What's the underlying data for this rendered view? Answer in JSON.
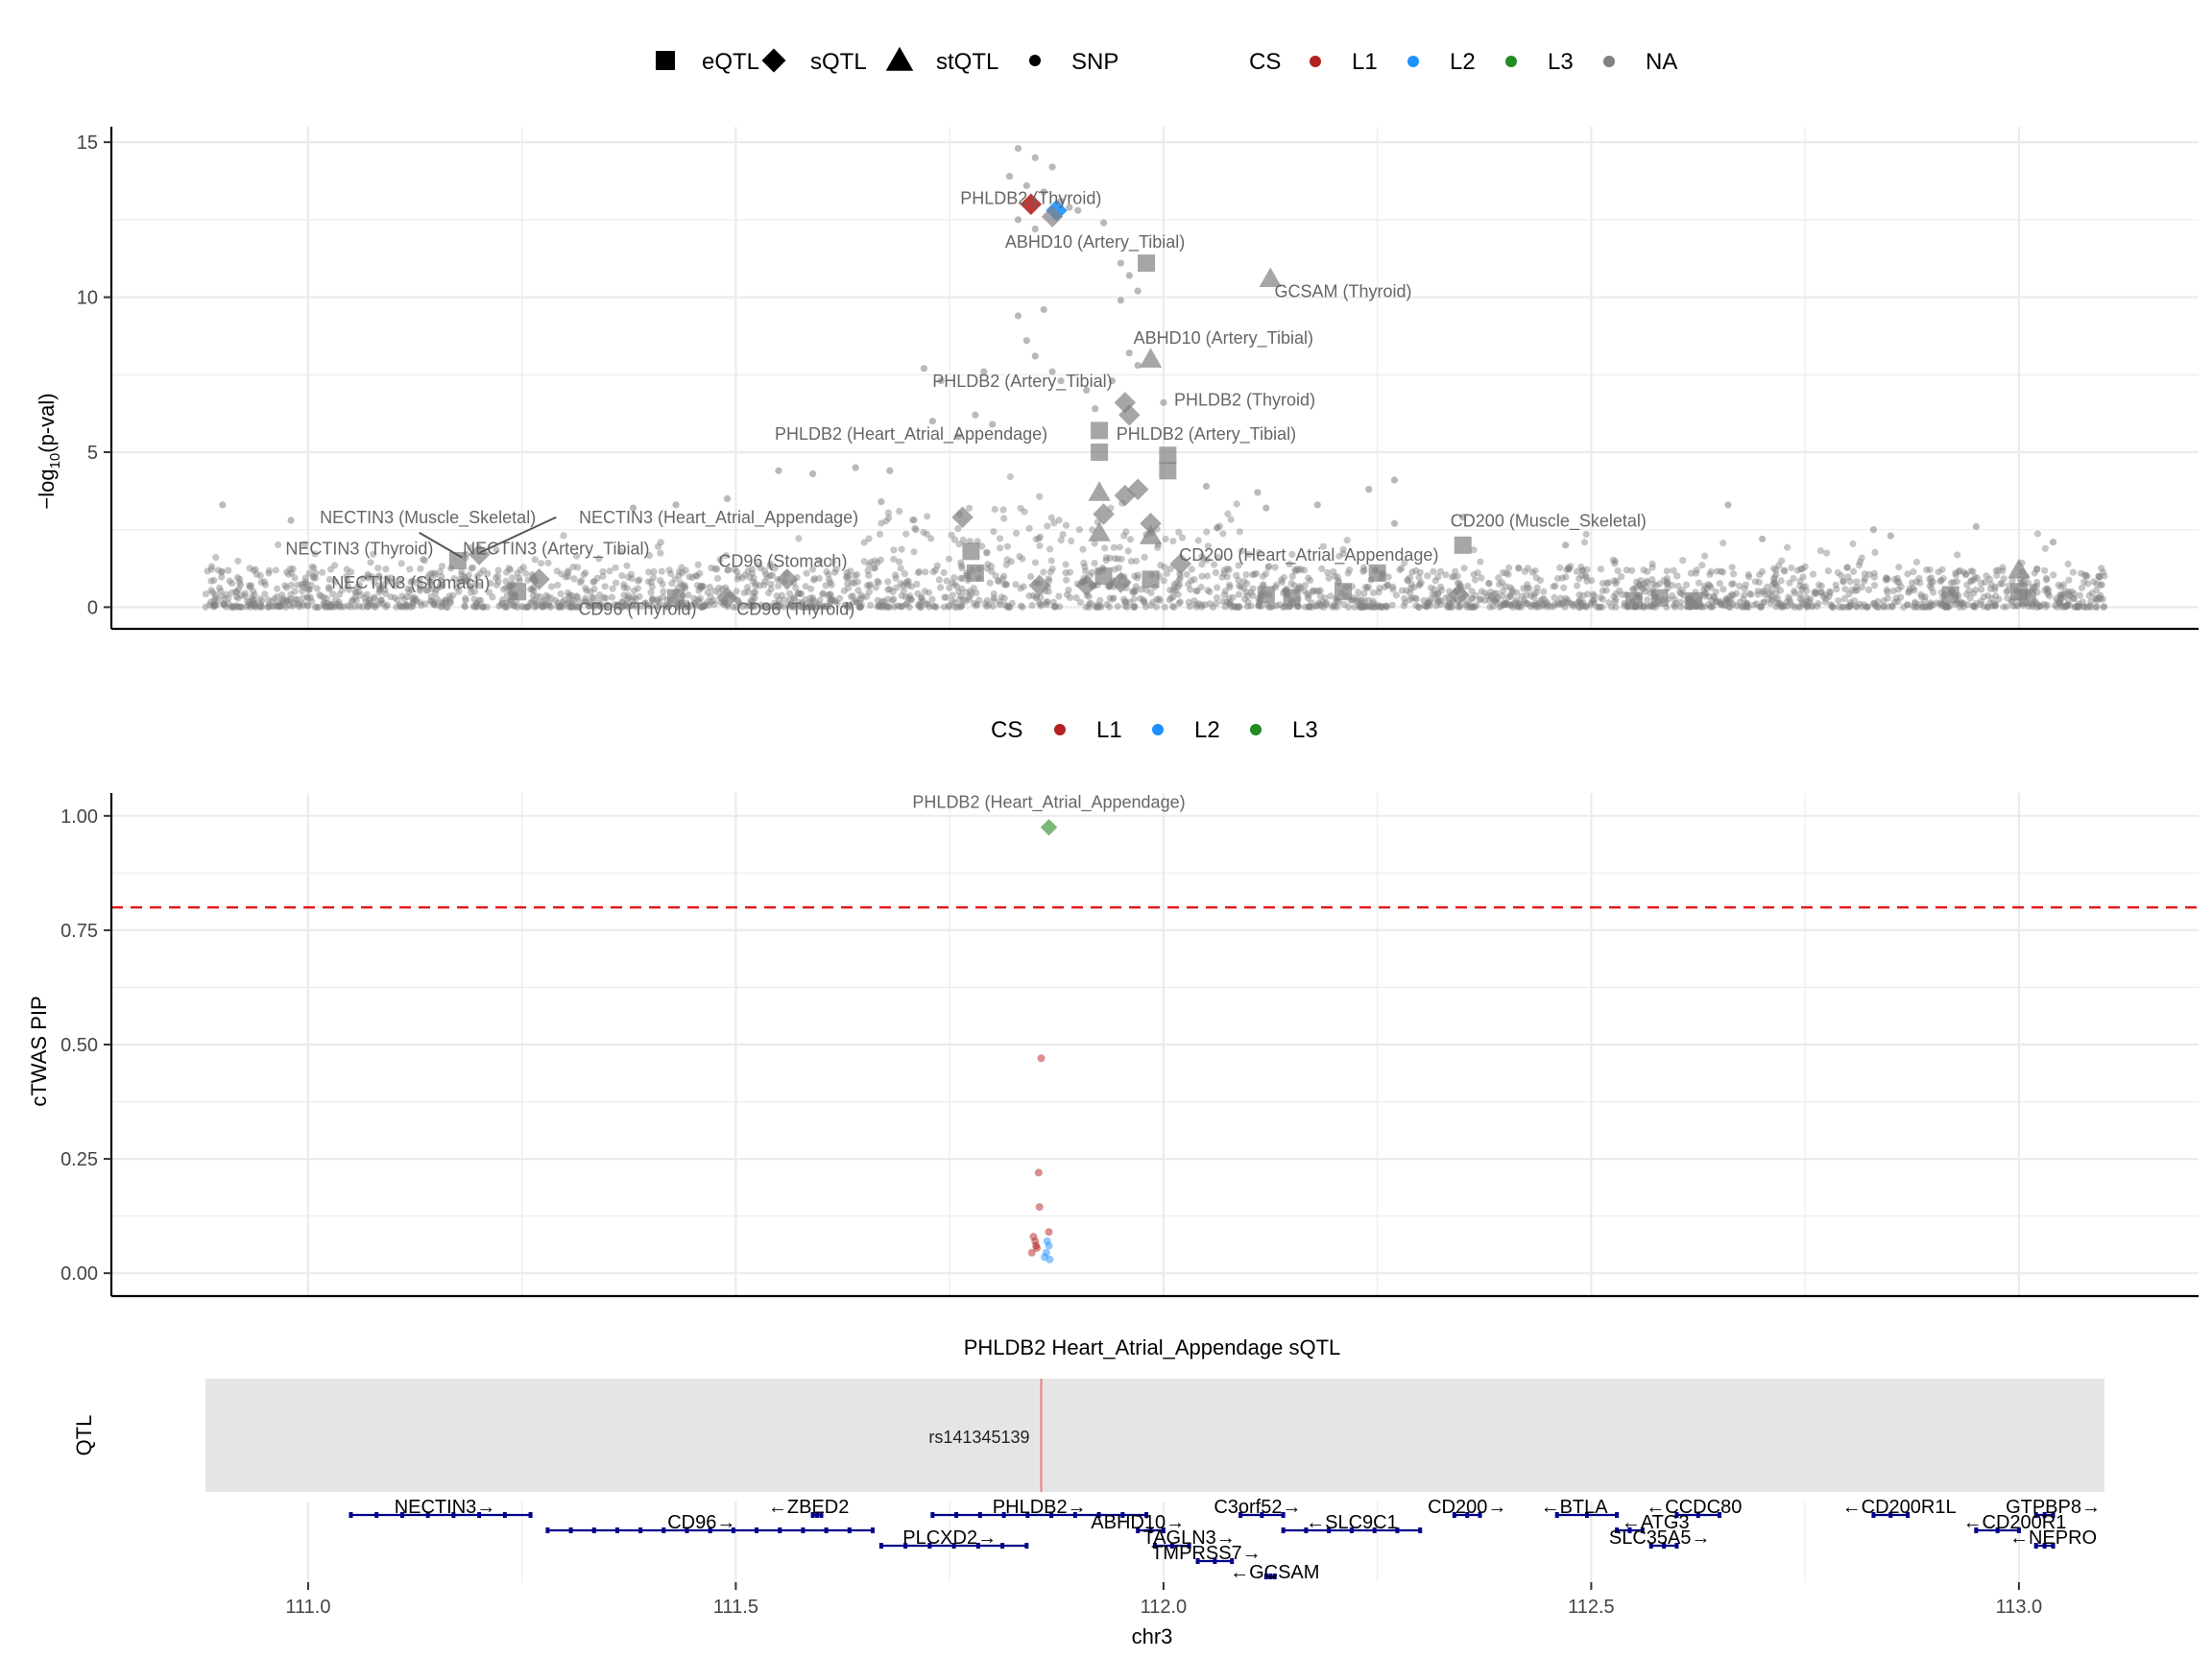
{
  "legend_top": {
    "shapes": [
      {
        "label": "eQTL",
        "icon": "square-icon"
      },
      {
        "label": "sQTL",
        "icon": "diamond-icon"
      },
      {
        "label": "stQTL",
        "icon": "triangle-icon"
      },
      {
        "label": "SNP",
        "icon": "dot-icon"
      }
    ],
    "cs_title": "CS",
    "cs_items": [
      {
        "label": "L1",
        "color": "#B22222"
      },
      {
        "label": "L2",
        "color": "#1E90FF"
      },
      {
        "label": "L3",
        "color": "#228B22"
      },
      {
        "label": "NA",
        "color": "#808080"
      }
    ]
  },
  "legend_mid": {
    "cs_title": "CS",
    "cs_items": [
      {
        "label": "L1",
        "color": "#B22222"
      },
      {
        "label": "L2",
        "color": "#1E90FF"
      },
      {
        "label": "L3",
        "color": "#228B22"
      }
    ]
  },
  "colors": {
    "grid": "#ebebeb",
    "gray_points": "#808080",
    "threshold": "#e31a1c",
    "qtl_band": "#e5e5e5",
    "qtl_line": "#f08080",
    "gene": "#00008B"
  },
  "chart_data": [
    {
      "type": "scatter",
      "panel": "gwas",
      "ylabel": "-log10(p-val)",
      "xlim": [
        110.77,
        113.21
      ],
      "ylim": [
        -0.7,
        15.5
      ],
      "yticks": [
        0,
        5,
        10,
        15
      ],
      "xgrid": [
        110.75,
        111.0,
        111.25,
        111.5,
        111.75,
        112.0,
        112.25,
        112.5,
        112.75,
        113.0,
        113.25
      ],
      "background_snps": {
        "x_range": [
          110.88,
          113.1
        ],
        "note_shape": "SNP",
        "peak_cluster": [
          [
            111.83,
            14.8
          ],
          [
            111.85,
            14.5
          ],
          [
            111.87,
            14.2
          ],
          [
            111.82,
            13.9
          ],
          [
            111.84,
            13.6
          ],
          [
            111.86,
            13.4
          ],
          [
            111.88,
            13.1
          ],
          [
            111.89,
            12.9
          ],
          [
            111.83,
            12.5
          ],
          [
            111.85,
            12.2
          ],
          [
            111.9,
            12.8
          ],
          [
            111.93,
            12.4
          ],
          [
            111.95,
            11.1
          ],
          [
            111.96,
            10.7
          ],
          [
            111.97,
            10.2
          ],
          [
            111.95,
            9.9
          ],
          [
            111.86,
            9.6
          ],
          [
            111.83,
            9.4
          ],
          [
            111.84,
            8.6
          ],
          [
            111.85,
            8.1
          ],
          [
            111.87,
            7.6
          ],
          [
            111.88,
            7.3
          ],
          [
            111.96,
            8.2
          ],
          [
            111.97,
            7.8
          ],
          [
            111.94,
            7.3
          ],
          [
            111.79,
            7.6
          ],
          [
            111.72,
            7.7
          ],
          [
            111.74,
            7.3
          ],
          [
            111.78,
            6.2
          ],
          [
            111.8,
            5.9
          ],
          [
            111.91,
            7.0
          ],
          [
            111.92,
            6.4
          ],
          [
            111.76,
            5.5
          ],
          [
            111.73,
            6.0
          ],
          [
            111.68,
            4.4
          ],
          [
            111.67,
            3.4
          ],
          [
            112.05,
            3.9
          ],
          [
            112.11,
            3.7
          ],
          [
            112.24,
            3.8
          ],
          [
            112.27,
            4.1
          ],
          [
            112.12,
            3.2
          ],
          [
            112.18,
            3.3
          ],
          [
            112.27,
            2.7
          ],
          [
            112.35,
            2.9
          ],
          [
            111.49,
            3.5
          ],
          [
            111.55,
            4.4
          ],
          [
            111.59,
            4.3
          ],
          [
            111.64,
            4.5
          ],
          [
            111.43,
            3.3
          ],
          [
            111.38,
            3.2
          ],
          [
            110.9,
            3.3
          ],
          [
            110.98,
            2.8
          ],
          [
            112.66,
            3.3
          ],
          [
            112.83,
            2.5
          ],
          [
            112.95,
            2.6
          ],
          [
            113.04,
            2.1
          ],
          [
            112.47,
            2.0
          ],
          [
            112.7,
            2.2
          ],
          [
            112.85,
            2.3
          ],
          [
            112.0,
            6.6
          ]
        ]
      },
      "features": [
        {
          "x": 111.845,
          "y": 13.0,
          "shape": "sQTL",
          "cs": "L1"
        },
        {
          "x": 111.875,
          "y": 12.8,
          "shape": "sQTL",
          "cs": "L2"
        },
        {
          "x": 111.87,
          "y": 12.6,
          "shape": "sQTL",
          "cs": "NA"
        },
        {
          "x": 111.98,
          "y": 11.1,
          "shape": "eQTL",
          "cs": "NA"
        },
        {
          "x": 112.125,
          "y": 10.6,
          "shape": "stQTL",
          "cs": "NA"
        },
        {
          "x": 111.985,
          "y": 8.0,
          "shape": "stQTL",
          "cs": "NA"
        },
        {
          "x": 111.955,
          "y": 6.6,
          "shape": "sQTL",
          "cs": "NA"
        },
        {
          "x": 111.96,
          "y": 6.2,
          "shape": "sQTL",
          "cs": "NA"
        },
        {
          "x": 111.925,
          "y": 5.7,
          "shape": "eQTL",
          "cs": "NA"
        },
        {
          "x": 111.925,
          "y": 5.0,
          "shape": "eQTL",
          "cs": "NA"
        },
        {
          "x": 112.005,
          "y": 4.9,
          "shape": "eQTL",
          "cs": "NA"
        },
        {
          "x": 112.005,
          "y": 4.4,
          "shape": "eQTL",
          "cs": "NA"
        },
        {
          "x": 111.925,
          "y": 3.7,
          "shape": "stQTL",
          "cs": "NA"
        },
        {
          "x": 111.955,
          "y": 3.6,
          "shape": "sQTL",
          "cs": "NA"
        },
        {
          "x": 111.97,
          "y": 3.8,
          "shape": "sQTL",
          "cs": "NA"
        },
        {
          "x": 111.93,
          "y": 3.0,
          "shape": "sQTL",
          "cs": "NA"
        },
        {
          "x": 111.985,
          "y": 2.7,
          "shape": "sQTL",
          "cs": "NA"
        },
        {
          "x": 111.925,
          "y": 2.4,
          "shape": "stQTL",
          "cs": "NA"
        },
        {
          "x": 111.985,
          "y": 2.3,
          "shape": "stQTL",
          "cs": "NA"
        },
        {
          "x": 111.765,
          "y": 2.9,
          "shape": "sQTL",
          "cs": "NA"
        },
        {
          "x": 111.775,
          "y": 1.8,
          "shape": "eQTL",
          "cs": "NA"
        },
        {
          "x": 111.78,
          "y": 1.1,
          "shape": "eQTL",
          "cs": "NA"
        },
        {
          "x": 111.93,
          "y": 1.0,
          "shape": "eQTL",
          "cs": "NA"
        },
        {
          "x": 111.95,
          "y": 0.8,
          "shape": "sQTL",
          "cs": "NA"
        },
        {
          "x": 111.91,
          "y": 0.7,
          "shape": "sQTL",
          "cs": "NA"
        },
        {
          "x": 111.985,
          "y": 0.9,
          "shape": "eQTL",
          "cs": "NA"
        },
        {
          "x": 112.02,
          "y": 1.4,
          "shape": "sQTL",
          "cs": "NA"
        },
        {
          "x": 111.855,
          "y": 0.7,
          "shape": "sQTL",
          "cs": "NA"
        },
        {
          "x": 111.175,
          "y": 1.5,
          "shape": "eQTL",
          "cs": "NA"
        },
        {
          "x": 111.2,
          "y": 1.7,
          "shape": "sQTL",
          "cs": "NA"
        },
        {
          "x": 111.245,
          "y": 0.5,
          "shape": "eQTL",
          "cs": "NA"
        },
        {
          "x": 111.27,
          "y": 0.9,
          "shape": "sQTL",
          "cs": "NA"
        },
        {
          "x": 111.43,
          "y": 0.3,
          "shape": "eQTL",
          "cs": "NA"
        },
        {
          "x": 111.49,
          "y": 0.3,
          "shape": "sQTL",
          "cs": "NA"
        },
        {
          "x": 111.56,
          "y": 0.9,
          "shape": "sQTL",
          "cs": "NA"
        },
        {
          "x": 112.12,
          "y": 0.4,
          "shape": "eQTL",
          "cs": "NA"
        },
        {
          "x": 112.15,
          "y": 0.3,
          "shape": "eQTL",
          "cs": "NA"
        },
        {
          "x": 112.21,
          "y": 0.5,
          "shape": "eQTL",
          "cs": "NA"
        },
        {
          "x": 112.25,
          "y": 1.1,
          "shape": "eQTL",
          "cs": "NA"
        },
        {
          "x": 112.35,
          "y": 2.0,
          "shape": "eQTL",
          "cs": "NA"
        },
        {
          "x": 112.345,
          "y": 0.4,
          "shape": "sQTL",
          "cs": "NA"
        },
        {
          "x": 112.55,
          "y": 0.2,
          "shape": "eQTL",
          "cs": "NA"
        },
        {
          "x": 112.58,
          "y": 0.3,
          "shape": "eQTL",
          "cs": "NA"
        },
        {
          "x": 112.62,
          "y": 0.2,
          "shape": "eQTL",
          "cs": "NA"
        },
        {
          "x": 112.92,
          "y": 0.4,
          "shape": "eQTL",
          "cs": "NA"
        },
        {
          "x": 113.0,
          "y": 1.2,
          "shape": "stQTL",
          "cs": "NA"
        },
        {
          "x": 113.0,
          "y": 0.5,
          "shape": "eQTL",
          "cs": "NA"
        },
        {
          "x": 113.01,
          "y": 0.3,
          "shape": "eQTL",
          "cs": "NA"
        }
      ],
      "labels": [
        {
          "text": "PHLDB2 (Thyroid)",
          "x": 111.845,
          "y": 13.0
        },
        {
          "text": "ABHD10 (Artery_Tibial)",
          "x": 111.92,
          "y": 11.6
        },
        {
          "text": "GCSAM (Thyroid)",
          "x": 112.21,
          "y": 10.0
        },
        {
          "text": "ABHD10 (Artery_Tibial)",
          "x": 112.07,
          "y": 8.5
        },
        {
          "text": "PHLDB2 (Artery_Tibial)",
          "x": 111.835,
          "y": 7.1
        },
        {
          "text": "PHLDB2 (Thyroid)",
          "x": 112.095,
          "y": 6.5
        },
        {
          "text": "PHLDB2 (Heart_Atrial_Appendage)",
          "x": 111.705,
          "y": 5.4
        },
        {
          "text": "PHLDB2 (Artery_Tibial)",
          "x": 112.05,
          "y": 5.4
        },
        {
          "text": "NECTIN3 (Muscle_Skeletal)",
          "x": 111.14,
          "y": 2.7
        },
        {
          "text": "NECTIN3 (Heart_Atrial_Appendage)",
          "x": 111.48,
          "y": 2.7
        },
        {
          "text": "NECTIN3 (Thyroid)",
          "x": 111.06,
          "y": 1.7
        },
        {
          "text": "NECTIN3 (Artery_Tibial)",
          "x": 111.29,
          "y": 1.7
        },
        {
          "text": "CD96 (Stomach)",
          "x": 111.555,
          "y": 1.3
        },
        {
          "text": "CD200 (Heart_Atrial_Appendage)",
          "x": 112.17,
          "y": 1.5
        },
        {
          "text": "CD200 (Muscle_Skeletal)",
          "x": 112.45,
          "y": 2.6
        },
        {
          "text": "NECTIN3 (Stomach)",
          "x": 111.12,
          "y": 0.6
        },
        {
          "text": "CD96 (Thyroid)",
          "x": 111.385,
          "y": -0.25
        },
        {
          "text": "CD96 (Thyroid)",
          "x": 111.57,
          "y": -0.25
        }
      ],
      "connectors": [
        [
          111.13,
          2.4,
          111.18,
          1.6
        ],
        [
          111.29,
          2.9,
          111.2,
          1.75
        ]
      ]
    },
    {
      "type": "scatter",
      "panel": "ctwas",
      "ylabel": "cTWAS PIP",
      "xlim": [
        110.77,
        113.21
      ],
      "ylim": [
        -0.05,
        1.05
      ],
      "yticks": [
        0.0,
        0.25,
        0.5,
        0.75,
        1.0
      ],
      "yticklabels": [
        "0.00",
        "0.25",
        "0.50",
        "0.75",
        "1.00"
      ],
      "threshold": 0.8,
      "points": [
        {
          "x": 111.866,
          "y": 0.975,
          "shape": "sQTL",
          "cs": "L3"
        },
        {
          "x": 111.857,
          "y": 0.47,
          "shape": "SNP",
          "cs": "L1"
        },
        {
          "x": 111.854,
          "y": 0.22,
          "shape": "SNP",
          "cs": "L1"
        },
        {
          "x": 111.855,
          "y": 0.145,
          "shape": "SNP",
          "cs": "L1"
        },
        {
          "x": 111.866,
          "y": 0.09,
          "shape": "SNP",
          "cs": "L1"
        },
        {
          "x": 111.848,
          "y": 0.08,
          "shape": "SNP",
          "cs": "L1"
        },
        {
          "x": 111.85,
          "y": 0.07,
          "shape": "SNP",
          "cs": "L1"
        },
        {
          "x": 111.852,
          "y": 0.055,
          "shape": "SNP",
          "cs": "L1"
        },
        {
          "x": 111.846,
          "y": 0.045,
          "shape": "SNP",
          "cs": "L1"
        },
        {
          "x": 111.851,
          "y": 0.06,
          "shape": "SNP",
          "cs": "L1"
        },
        {
          "x": 111.864,
          "y": 0.07,
          "shape": "SNP",
          "cs": "L2"
        },
        {
          "x": 111.866,
          "y": 0.06,
          "shape": "SNP",
          "cs": "L2"
        },
        {
          "x": 111.863,
          "y": 0.045,
          "shape": "SNP",
          "cs": "L2"
        },
        {
          "x": 111.861,
          "y": 0.035,
          "shape": "SNP",
          "cs": "L2"
        },
        {
          "x": 111.867,
          "y": 0.03,
          "shape": "SNP",
          "cs": "L2"
        }
      ],
      "labels": [
        {
          "text": "PHLDB2 (Heart_Atrial_Appendage)",
          "x": 111.866,
          "y": 1.03
        }
      ]
    },
    {
      "type": "track",
      "panel": "qtl",
      "title": "PHLDB2 Heart_Atrial_Appendage sQTL",
      "ylabel": "QTL",
      "region": [
        110.88,
        113.1
      ],
      "variant": {
        "id": "rs141345139",
        "x": 111.857
      }
    },
    {
      "type": "track",
      "panel": "genes",
      "xlabel": "chr3",
      "xticks": [
        111.0,
        111.5,
        112.0,
        112.5,
        113.0
      ],
      "xticklabels": [
        "111.0",
        "111.5",
        "112.0",
        "112.5",
        "113.0"
      ],
      "genes": [
        {
          "label": "NECTIN3→",
          "start": 111.05,
          "end": 111.26,
          "row": 0,
          "lx": 111.16
        },
        {
          "label": "←ZBED2",
          "start": 111.59,
          "end": 111.6,
          "row": 0,
          "lx": 111.585
        },
        {
          "label": "PHLDB2→",
          "start": 111.73,
          "end": 111.98,
          "row": 0,
          "lx": 111.855
        },
        {
          "label": "C3orf52→",
          "start": 112.09,
          "end": 112.14,
          "row": 0,
          "lx": 112.11
        },
        {
          "label": "CD200→",
          "start": 112.34,
          "end": 112.37,
          "row": 0,
          "lx": 112.355
        },
        {
          "label": "←BTLA",
          "start": 112.46,
          "end": 112.53,
          "row": 0,
          "lx": 112.48
        },
        {
          "label": "←CCDC80",
          "start": 112.6,
          "end": 112.65,
          "row": 0,
          "lx": 112.62
        },
        {
          "label": "←CD200R1L",
          "start": 112.83,
          "end": 112.87,
          "row": 0,
          "lx": 112.86
        },
        {
          "label": "GTPBP8→",
          "start": 113.02,
          "end": 113.04,
          "row": 0,
          "lx": 113.04
        },
        {
          "label": "CD96→",
          "start": 111.28,
          "end": 111.66,
          "row": 1,
          "lx": 111.46
        },
        {
          "label": "ABHD10→",
          "start": 111.97,
          "end": 112.0,
          "row": 1,
          "lx": 111.97
        },
        {
          "label": "←SLC9C1",
          "start": 112.14,
          "end": 112.3,
          "row": 1,
          "lx": 112.22
        },
        {
          "label": "←ATG3",
          "start": 112.53,
          "end": 112.56,
          "row": 1,
          "lx": 112.575
        },
        {
          "label": "←CD200R1",
          "start": 112.95,
          "end": 113.0,
          "row": 1,
          "lx": 112.995
        },
        {
          "label": "PLCXD2→",
          "start": 111.67,
          "end": 111.84,
          "row": 2,
          "lx": 111.75
        },
        {
          "label": "TAGLN3→",
          "start": 111.99,
          "end": 112.03,
          "row": 2,
          "lx": 112.03
        },
        {
          "label": "SLC35A5→",
          "start": 112.57,
          "end": 112.6,
          "row": 2,
          "lx": 112.58
        },
        {
          "label": "←NEPRO",
          "start": 113.02,
          "end": 113.04,
          "row": 2,
          "lx": 113.04
        },
        {
          "label": "TMPRSS7→",
          "start": 112.04,
          "end": 112.08,
          "row": 3,
          "lx": 112.05
        },
        {
          "label": "←GCSAM",
          "start": 112.12,
          "end": 112.13,
          "row": 4,
          "lx": 112.13
        }
      ]
    }
  ]
}
